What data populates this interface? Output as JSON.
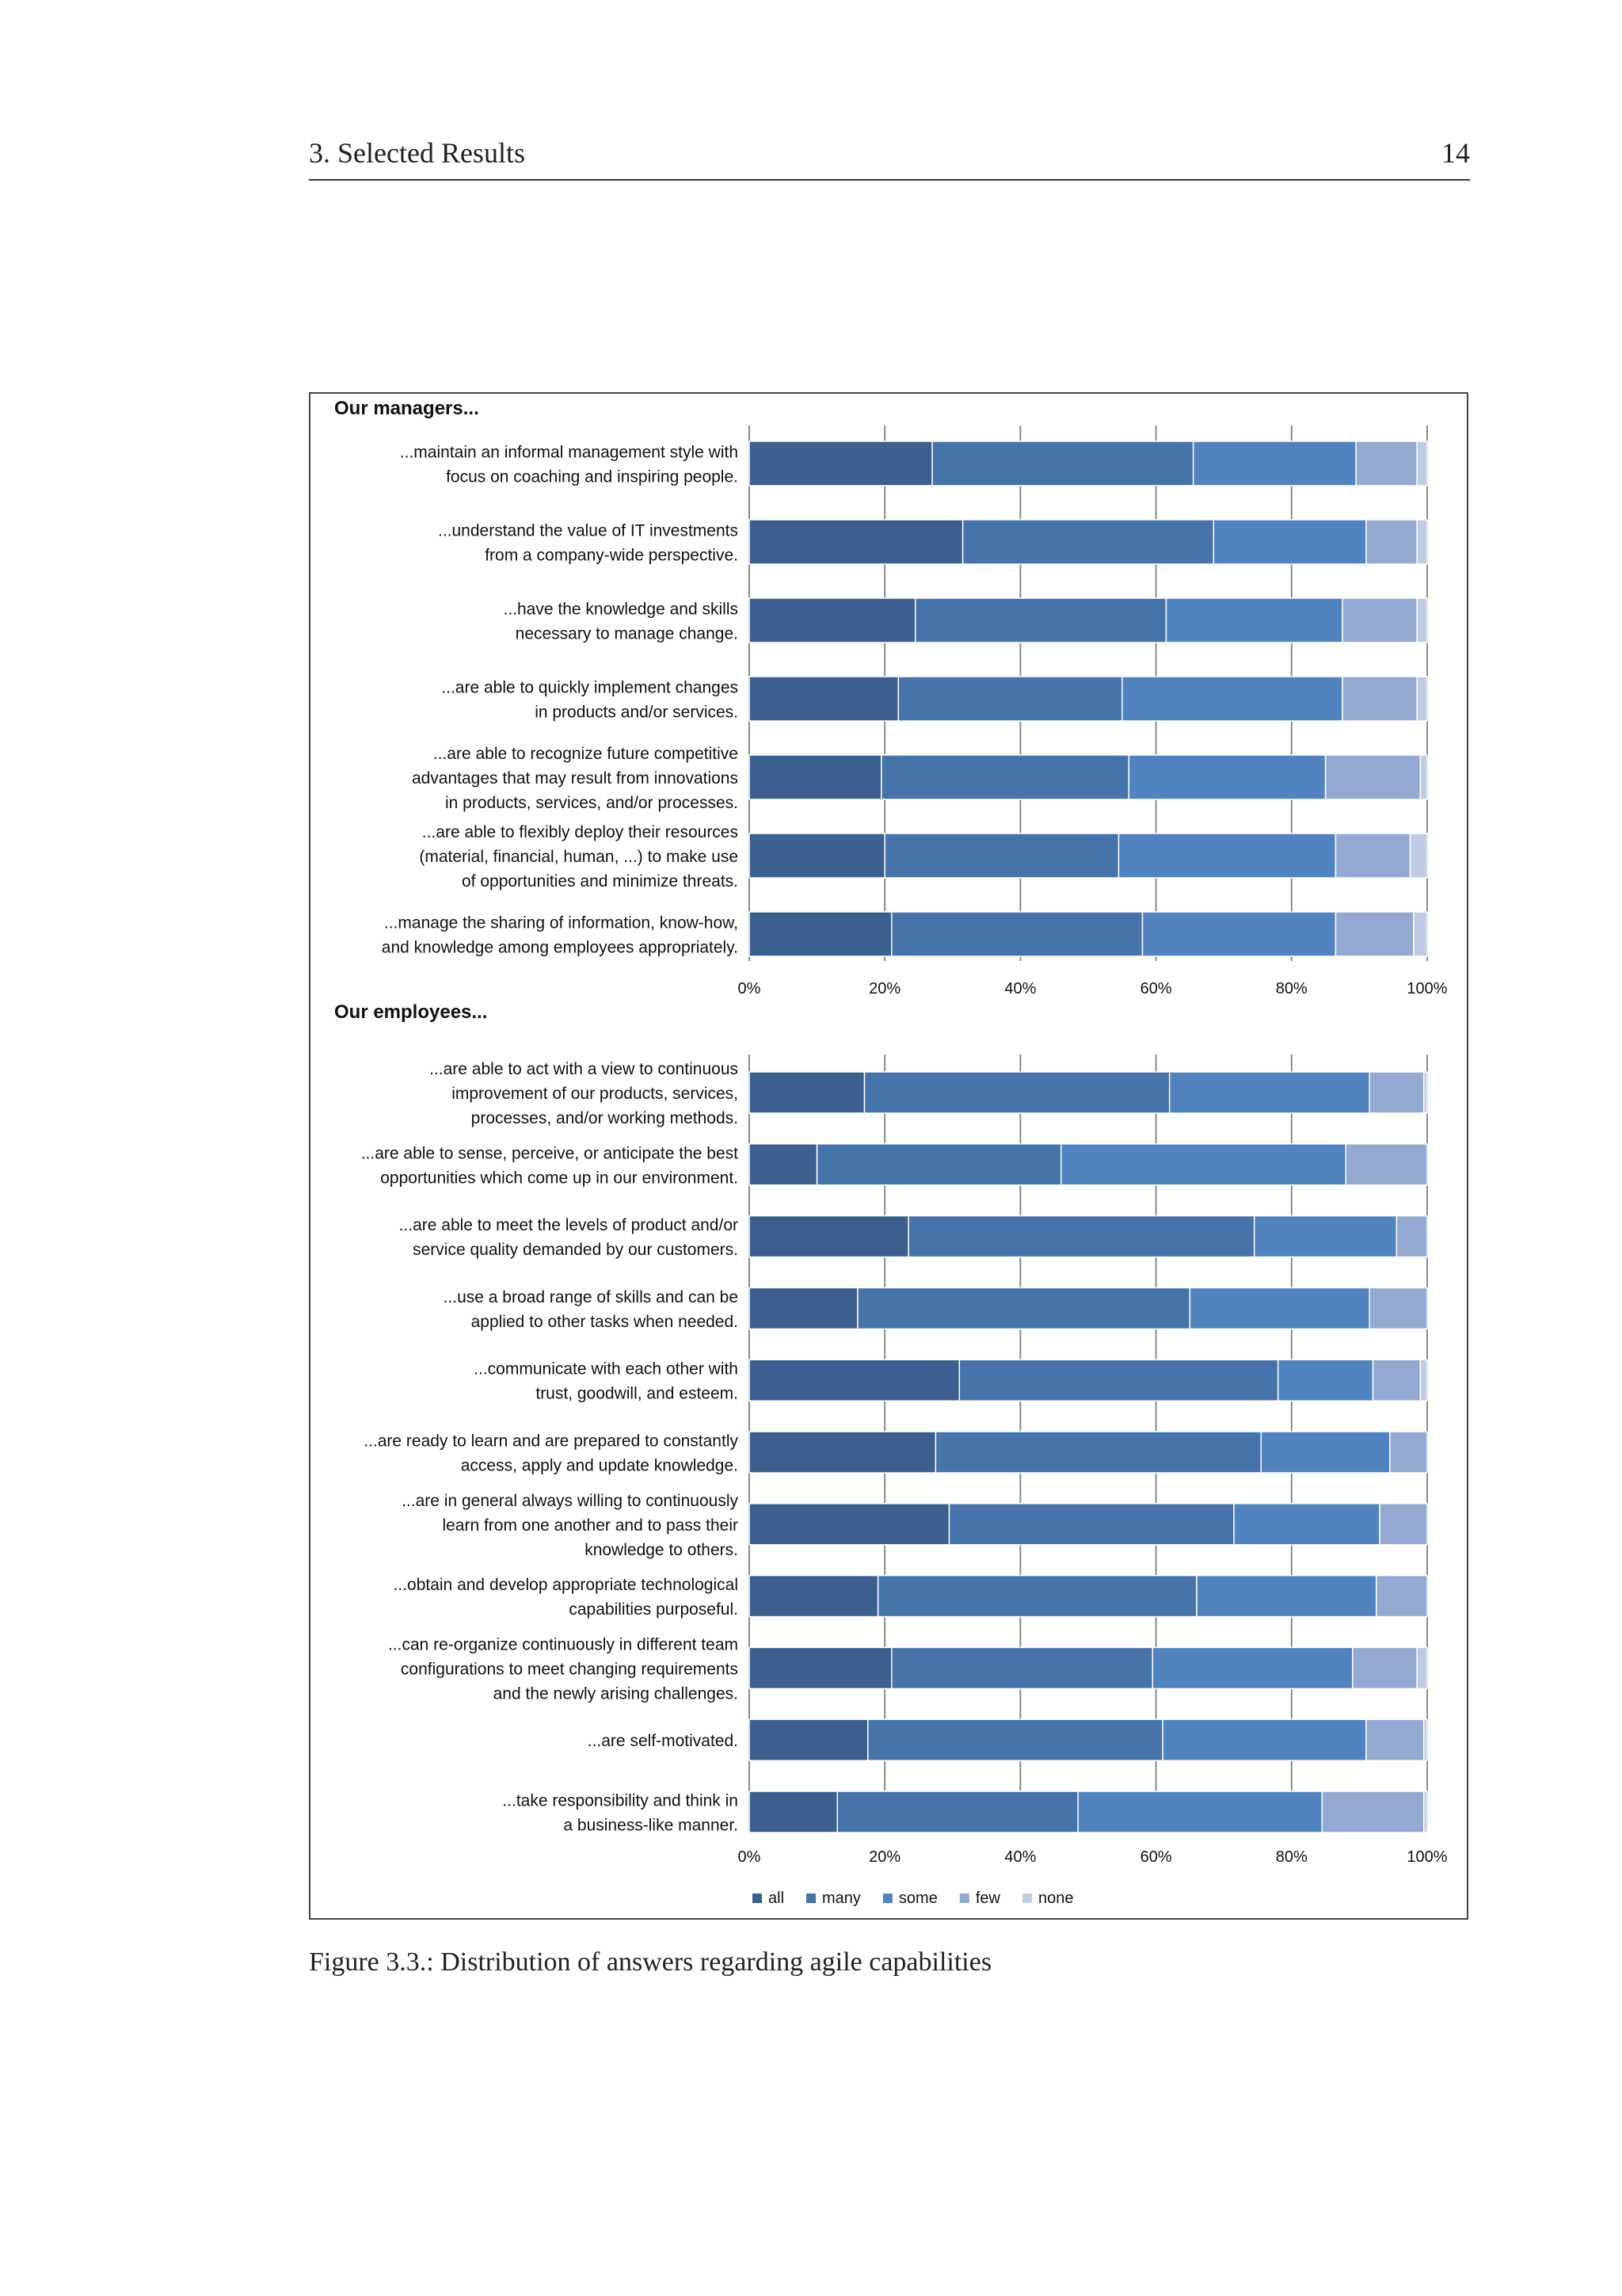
{
  "header": {
    "section": "3.  Selected Results",
    "page_number": "14"
  },
  "caption": "Figure 3.3.: Distribution of answers regarding agile capabilities",
  "colors": {
    "all": "#3b5f8e",
    "many": "#4673aa",
    "some": "#5083c0",
    "few": "#93a9d2",
    "none": "#bfcbe4"
  },
  "chart_data": [
    {
      "type": "bar",
      "orientation": "horizontal",
      "stacked": "percent",
      "title": "Our managers...",
      "xlim": [
        0,
        100
      ],
      "x_ticks": [
        "0%",
        "20%",
        "40%",
        "60%",
        "80%",
        "100%"
      ],
      "grid": true,
      "legend": "bottom",
      "categories": [
        "...maintain an informal management style with focus on coaching and inspiring people.",
        "...understand the value of IT investments from a company-wide perspective.",
        "...have the knowledge and skills necessary to manage change.",
        "...are able to quickly implement changes in products and/or services.",
        "...are able to recognize future competitive advantages that may result from innovations in products, services, and/or processes.",
        "...are able to flexibly deploy their resources (material, financial, human, ...) to make use of opportunities and minimize threats.",
        "...manage the sharing of information, know-how, and knowledge among employees appropriately."
      ],
      "category_lines": [
        [
          "...maintain an informal management style with",
          "focus on coaching and inspiring people."
        ],
        [
          "...understand the value of IT investments",
          "from a company-wide perspective."
        ],
        [
          "...have the knowledge and skills",
          "necessary to manage change."
        ],
        [
          "...are able to quickly implement changes",
          "in products and/or services."
        ],
        [
          "...are able to recognize future competitive",
          "advantages that may result from innovations",
          "in products, services, and/or processes."
        ],
        [
          "...are able to flexibly deploy their resources",
          "(material, financial, human, ...) to make use",
          "of opportunities and minimize threats."
        ],
        [
          "...manage the sharing of information, know-how,",
          "and knowledge among employees appropriately."
        ]
      ],
      "series": [
        {
          "name": "all",
          "values": [
            27,
            31.5,
            24.5,
            22,
            19.5,
            20,
            21
          ]
        },
        {
          "name": "many",
          "values": [
            38.5,
            37,
            37,
            33,
            36.5,
            34.5,
            37
          ]
        },
        {
          "name": "some",
          "values": [
            24,
            22.5,
            26,
            32.5,
            29,
            32,
            28.5
          ]
        },
        {
          "name": "few",
          "values": [
            9,
            7.5,
            11,
            11,
            14,
            11,
            11.5
          ]
        },
        {
          "name": "none",
          "values": [
            1.5,
            1.5,
            1.5,
            1.5,
            1,
            2.5,
            2
          ]
        }
      ]
    },
    {
      "type": "bar",
      "orientation": "horizontal",
      "stacked": "percent",
      "title": "Our employees...",
      "xlim": [
        0,
        100
      ],
      "x_ticks": [
        "0%",
        "20%",
        "40%",
        "60%",
        "80%",
        "100%"
      ],
      "grid": true,
      "legend": "bottom",
      "categories": [
        "...are able to act with a view to continuous improvement of our products, services, processes, and/or working methods.",
        "...are able to sense, perceive, or anticipate the best opportunities which come up in our environment.",
        "...are able to meet the levels of product and/or service quality demanded by our customers.",
        "...use a broad range of skills and can be applied to other tasks when needed.",
        "...communicate with each other with trust, goodwill, and esteem.",
        "...are ready to learn and are prepared to constantly access, apply and update knowledge.",
        "...are in general always willing to continuously learn from one another and to pass their knowledge to others.",
        "...obtain and develop appropriate technological capabilities purposeful.",
        "...can re-organize continuously in different team configurations to meet changing requirements and the newly arising challenges.",
        "...are self-motivated.",
        "...take responsibility and think in a business-like manner."
      ],
      "category_lines": [
        [
          "...are able to act with a view to continuous",
          "improvement of our products, services,",
          "processes, and/or working methods."
        ],
        [
          "...are able to sense, perceive, or anticipate the best",
          "opportunities which come up in our environment."
        ],
        [
          "...are able to meet the levels of product and/or",
          "service quality demanded by our customers."
        ],
        [
          "...use a broad range of skills and can be",
          "applied to other tasks when needed."
        ],
        [
          "...communicate with each other with",
          "trust, goodwill, and esteem."
        ],
        [
          "...are ready to learn and are prepared to constantly",
          "access, apply and update knowledge."
        ],
        [
          "...are in general always willing to continuously",
          "learn from one another and to pass their",
          "knowledge to others."
        ],
        [
          "...obtain and develop appropriate technological",
          "capabilities purposeful."
        ],
        [
          "...can re-organize continuously in different team",
          "configurations to meet changing requirements",
          "and the newly arising challenges."
        ],
        [
          "...are self-motivated."
        ],
        [
          "...take responsibility and think in",
          "a business-like manner."
        ]
      ],
      "series": [
        {
          "name": "all",
          "values": [
            17,
            10,
            23.5,
            16,
            31,
            27.5,
            29.5,
            19,
            21,
            17.5,
            13
          ]
        },
        {
          "name": "many",
          "values": [
            45,
            36,
            51,
            49,
            47,
            48,
            42,
            47,
            38.5,
            43.5,
            35.5
          ]
        },
        {
          "name": "some",
          "values": [
            29.5,
            42,
            21,
            26.5,
            14,
            19,
            21.5,
            26.5,
            29.5,
            30,
            36
          ]
        },
        {
          "name": "few",
          "values": [
            8,
            12,
            4.5,
            8.5,
            7,
            5.5,
            7,
            7.5,
            9.5,
            8.5,
            15
          ]
        },
        {
          "name": "none",
          "values": [
            0.5,
            0,
            0,
            0,
            1,
            0,
            0,
            0,
            1.5,
            0.5,
            0.5
          ]
        }
      ]
    }
  ]
}
